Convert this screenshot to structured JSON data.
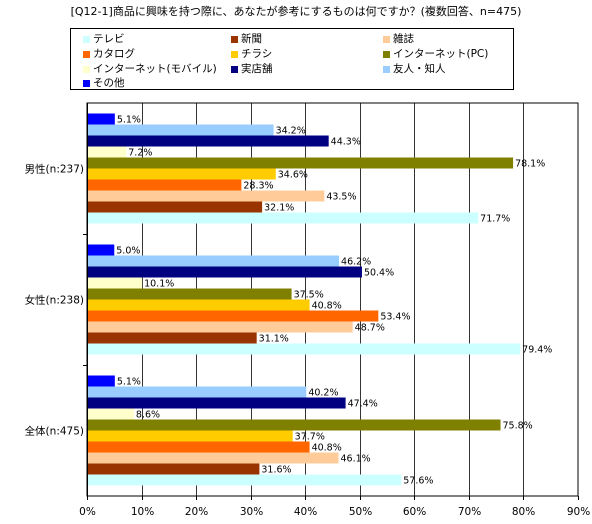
{
  "chart_data": {
    "type": "bar",
    "orientation": "horizontal",
    "title": "[Q12-1]商品に興味を持つ際に、あなたが参考にするものは何ですか？(複数回答、n=475)",
    "categories": [
      "男性(n:237)",
      "女性(n:238)",
      "全体(n:475)"
    ],
    "series": [
      {
        "name": "テレビ",
        "color": "#ccffff",
        "values": [
          71.7,
          79.4,
          57.6
        ],
        "labels": [
          "71.7%",
          "79.4%",
          "57.6%"
        ]
      },
      {
        "name": "新聞",
        "color": "#993300",
        "values": [
          32.1,
          31.1,
          31.6
        ],
        "labels": [
          "32.1%",
          "31.1%",
          "31.6%"
        ]
      },
      {
        "name": "雑誌",
        "color": "#ffcc99",
        "values": [
          43.5,
          48.7,
          46.1
        ],
        "labels": [
          "43.5%",
          "48.7%",
          "46.1%"
        ]
      },
      {
        "name": "カタログ",
        "color": "#ff6600",
        "values": [
          28.3,
          53.4,
          40.8
        ],
        "labels": [
          "28.3%",
          "53.4%",
          "40.8%"
        ]
      },
      {
        "name": "チラシ",
        "color": "#ffcc00",
        "values": [
          34.6,
          40.8,
          37.7
        ],
        "labels": [
          "34.6%",
          "40.8%",
          "37.7%"
        ]
      },
      {
        "name": "インターネット(PC)",
        "color": "#808000",
        "values": [
          78.1,
          37.5,
          75.8
        ],
        "labels": [
          "78.1%",
          "37.5%",
          "75.8%"
        ]
      },
      {
        "name": "インターネット(モバイル)",
        "color": "#ffffcc",
        "values": [
          7.2,
          10.1,
          8.6
        ],
        "labels": [
          "7.2%",
          "10.1%",
          "8.6%"
        ]
      },
      {
        "name": "実店舗",
        "color": "#000080",
        "values": [
          44.3,
          50.4,
          47.4
        ],
        "labels": [
          "44.3%",
          "50.4%",
          "47.4%"
        ]
      },
      {
        "name": "友人・知人",
        "color": "#99ccff",
        "values": [
          34.2,
          46.2,
          40.2
        ],
        "labels": [
          "34.2%",
          "46.2%",
          "40.2%"
        ]
      },
      {
        "name": "その他",
        "color": "#0000ff",
        "values": [
          5.1,
          5.0,
          5.1
        ],
        "labels": [
          "5.1%",
          "5.0%",
          "5.1%"
        ]
      }
    ],
    "xlim": [
      0,
      90
    ],
    "xticks": [
      "0%",
      "10%",
      "20%",
      "30%",
      "40%",
      "50%",
      "60%",
      "70%",
      "80%",
      "90%"
    ],
    "grid": true,
    "legend_position": "top"
  }
}
